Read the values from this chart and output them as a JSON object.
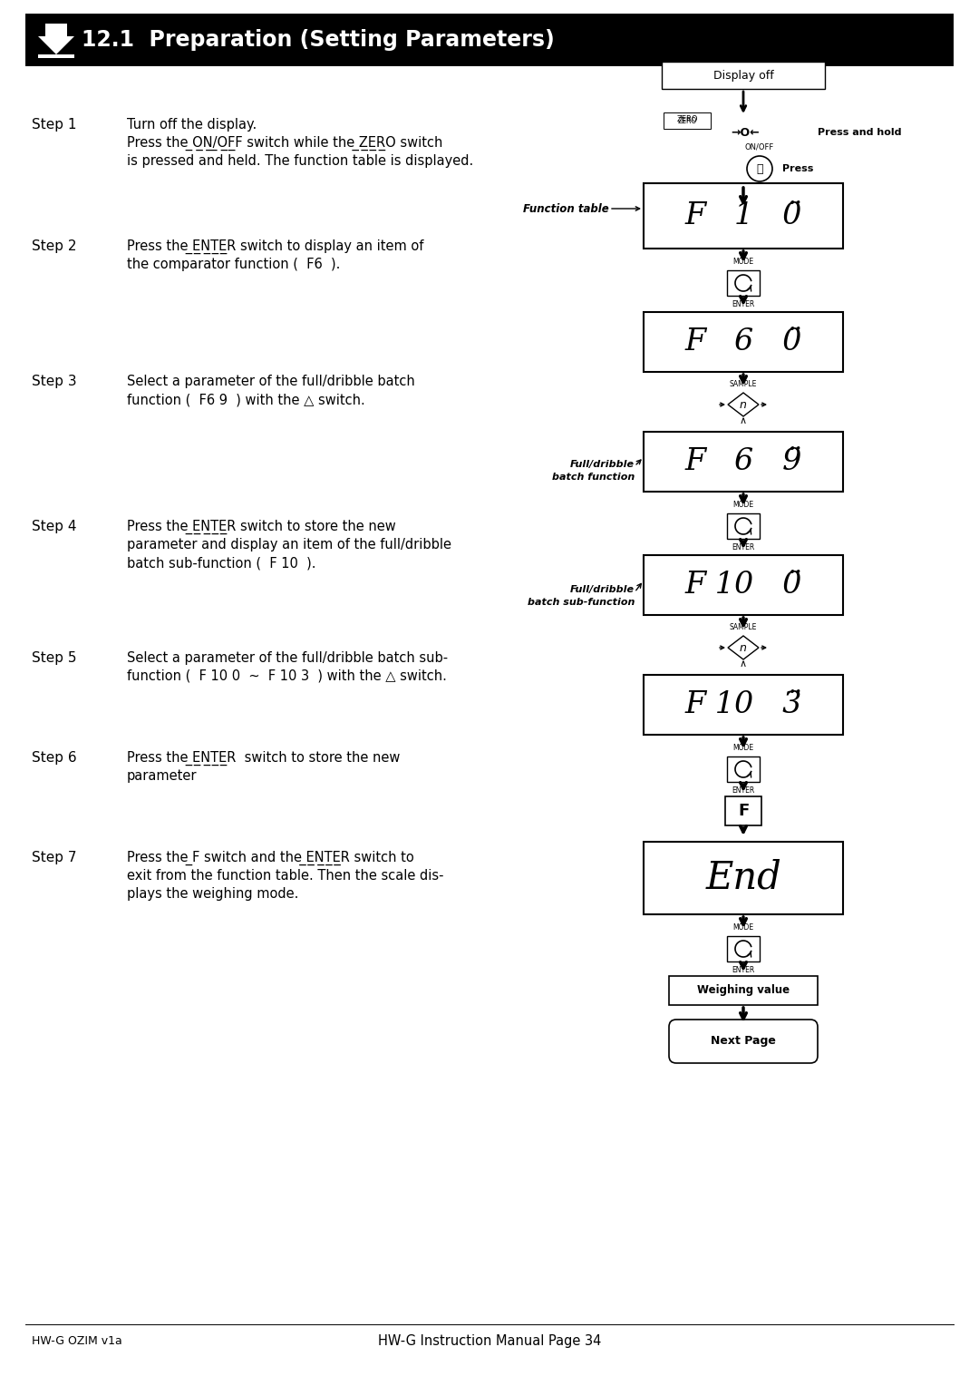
{
  "title": "12.1  Preparation (Setting Parameters)",
  "bg_color": "#ffffff",
  "header_bg": "#000000",
  "header_text_color": "#ffffff",
  "footer_left": "HW-G OZIM v1a",
  "footer_center": "HW-G Instruction Manual Page 34",
  "steps": [
    {
      "num": "Step 1",
      "lines": [
        "Turn off the display.",
        "Press the ON/OFF switch while the ZERO switch",
        "is pressed and held. The function table is displayed."
      ]
    },
    {
      "num": "Step 2",
      "lines": [
        "Press the ENTER switch to display an item of",
        "the comparator function (  F6  )."
      ]
    },
    {
      "num": "Step 3",
      "lines": [
        "Select a parameter of the full/dribble batch",
        "function (  F6 9  ) with the △ switch."
      ]
    },
    {
      "num": "Step 4",
      "lines": [
        "Press the ENTER switch to store the new",
        "parameter and display an item of the full/dribble",
        "batch sub-function (  F 10  )."
      ]
    },
    {
      "num": "Step 5",
      "lines": [
        "Select a parameter of the full/dribble batch sub-",
        "function (  F 10 0  ~  F 10 3  ) with the △ switch."
      ]
    },
    {
      "num": "Step 6",
      "lines": [
        "Press the ENTER  switch to store the new",
        "parameter"
      ]
    },
    {
      "num": "Step 7",
      "lines": [
        "Press the F switch and the ENTER switch to",
        "exit from the function table. Then the scale dis-",
        "plays the weighing mode."
      ]
    }
  ]
}
